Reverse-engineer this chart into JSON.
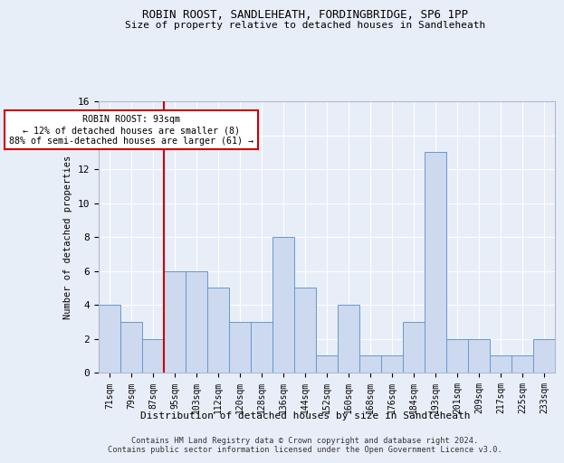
{
  "title1": "ROBIN ROOST, SANDLEHEATH, FORDINGBRIDGE, SP6 1PP",
  "title2": "Size of property relative to detached houses in Sandleheath",
  "xlabel": "Distribution of detached houses by size in Sandleheath",
  "ylabel": "Number of detached properties",
  "categories": [
    "71sqm",
    "79sqm",
    "87sqm",
    "95sqm",
    "103sqm",
    "112sqm",
    "120sqm",
    "128sqm",
    "136sqm",
    "144sqm",
    "152sqm",
    "160sqm",
    "168sqm",
    "176sqm",
    "184sqm",
    "193sqm",
    "201sqm",
    "209sqm",
    "217sqm",
    "225sqm",
    "233sqm"
  ],
  "values": [
    4,
    3,
    2,
    6,
    6,
    5,
    3,
    3,
    8,
    5,
    1,
    4,
    1,
    1,
    3,
    13,
    2,
    2,
    1,
    1,
    2
  ],
  "bar_color": "#ccd9ef",
  "bar_edge_color": "#6699cc",
  "annotation_text_line1": "ROBIN ROOST: 93sqm",
  "annotation_text_line2": "← 12% of detached houses are smaller (8)",
  "annotation_text_line3": "88% of semi-detached houses are larger (61) →",
  "vline_x_index": 2.5,
  "vline_color": "#cc0000",
  "annotation_box_color": "#ffffff",
  "annotation_box_edge_color": "#cc0000",
  "ylim": [
    0,
    16
  ],
  "yticks": [
    0,
    2,
    4,
    6,
    8,
    10,
    12,
    14,
    16
  ],
  "footer1": "Contains HM Land Registry data © Crown copyright and database right 2024.",
  "footer2": "Contains public sector information licensed under the Open Government Licence v3.0.",
  "bg_color": "#e8eef8",
  "grid_color": "#ffffff"
}
